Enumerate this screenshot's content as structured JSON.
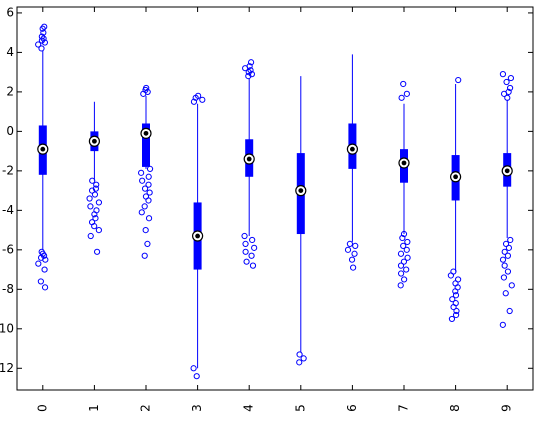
{
  "chart_data": {
    "type": "box",
    "categories": [
      "0",
      "1",
      "2",
      "3",
      "4",
      "5",
      "6",
      "7",
      "8",
      "9"
    ],
    "median": [
      -0.9,
      -0.5,
      -0.1,
      -5.3,
      -1.4,
      -3.0,
      -0.9,
      -1.6,
      -2.3,
      -2.0
    ],
    "q1": [
      -2.2,
      -1.0,
      -1.8,
      -7.0,
      -2.3,
      -5.2,
      -1.9,
      -2.6,
      -3.5,
      -2.8
    ],
    "q3": [
      0.3,
      0.0,
      0.4,
      -3.6,
      -0.4,
      -1.1,
      0.4,
      -0.9,
      -1.2,
      -1.1
    ],
    "whisker_low": [
      -6.0,
      -2.5,
      -1.9,
      -12.0,
      -5.3,
      -11.2,
      -5.6,
      -5.2,
      -7.1,
      -5.4
    ],
    "whisker_high": [
      4.1,
      1.5,
      1.8,
      1.4,
      2.7,
      2.8,
      3.9,
      1.4,
      2.4,
      1.6
    ],
    "outliers": [
      [
        4.2,
        4.4,
        4.5,
        4.6,
        4.7,
        4.8,
        5.0,
        5.2,
        5.3,
        -6.1,
        -6.2,
        -6.3,
        -6.4,
        -6.5,
        -6.7,
        -7.0,
        -7.6,
        -7.9
      ],
      [
        -2.5,
        -2.7,
        -2.9,
        -3.0,
        -3.2,
        -3.4,
        -3.6,
        -3.8,
        -4.0,
        -4.2,
        -4.4,
        -4.6,
        -4.8,
        -5.0,
        -5.3,
        -6.1
      ],
      [
        1.9,
        2.0,
        2.1,
        2.2,
        -1.9,
        -2.1,
        -2.3,
        -2.5,
        -2.7,
        -2.9,
        -3.1,
        -3.3,
        -3.5,
        -3.8,
        -4.1,
        -4.4,
        -5.0,
        -5.7,
        -6.3
      ],
      [
        1.5,
        1.6,
        1.7,
        1.8,
        -12.0,
        -12.4
      ],
      [
        2.8,
        2.9,
        3.0,
        3.1,
        3.2,
        3.3,
        3.5,
        -5.3,
        -5.5,
        -5.7,
        -5.9,
        -6.1,
        -6.3,
        -6.6,
        -6.8
      ],
      [
        -11.3,
        -11.5,
        -11.7
      ],
      [
        -5.7,
        -5.8,
        -6.0,
        -6.2,
        -6.5,
        -6.9
      ],
      [
        1.7,
        1.9,
        2.4,
        -5.2,
        -5.4,
        -5.6,
        -5.8,
        -6.0,
        -6.2,
        -6.4,
        -6.6,
        -6.8,
        -7.0,
        -7.2,
        -7.5,
        -7.8
      ],
      [
        2.6,
        -7.1,
        -7.3,
        -7.5,
        -7.7,
        -7.9,
        -8.1,
        -8.3,
        -8.5,
        -8.7,
        -8.9,
        -9.1,
        -9.3,
        -9.5
      ],
      [
        1.7,
        1.9,
        2.0,
        2.2,
        2.5,
        2.7,
        2.9,
        -5.5,
        -5.7,
        -5.9,
        -6.1,
        -6.3,
        -6.5,
        -6.8,
        -7.1,
        -7.4,
        -7.8,
        -8.2,
        -9.1,
        -9.8
      ]
    ],
    "color": "#0000ff",
    "ylim": [
      -13.1,
      6.3
    ],
    "yticks": [
      6,
      4,
      2,
      0,
      -2,
      -4,
      -6,
      -8,
      -10,
      -12
    ]
  }
}
